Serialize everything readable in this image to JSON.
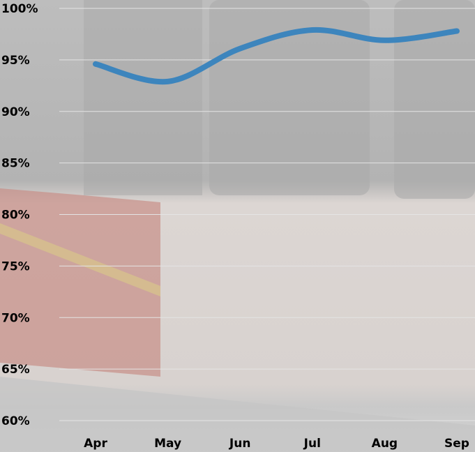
{
  "chart_data": {
    "type": "line",
    "categories": [
      "Apr",
      "May",
      "Jun",
      "Jul",
      "Aug",
      "Sep"
    ],
    "series": [
      {
        "color": "#3d85bd",
        "values": [
          94.6,
          92.9,
          96.1,
          97.9,
          96.9,
          97.8
        ]
      }
    ],
    "ylim": [
      60,
      100
    ],
    "yticks": [
      {
        "value": 60,
        "label": "60%"
      },
      {
        "value": 65,
        "label": "65%"
      },
      {
        "value": 70,
        "label": "70%"
      },
      {
        "value": 75,
        "label": "75%"
      },
      {
        "value": 80,
        "label": "80%"
      },
      {
        "value": 85,
        "label": "85%"
      },
      {
        "value": 90,
        "label": "90%"
      },
      {
        "value": 95,
        "label": "95%"
      },
      {
        "value": 100,
        "label": "100%"
      }
    ],
    "grid": true
  }
}
